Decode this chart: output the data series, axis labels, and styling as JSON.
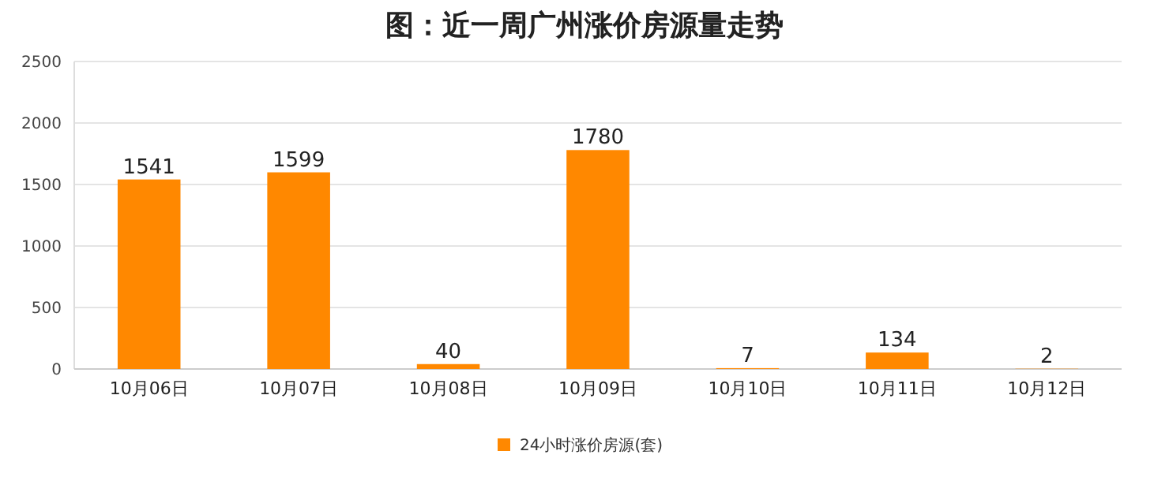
{
  "chart_data": {
    "type": "bar",
    "title": "图：近一周广州涨价房源量走势",
    "categories": [
      "10月06日",
      "10月07日",
      "10月08日",
      "10月09日",
      "10月10日",
      "10月11日",
      "10月12日"
    ],
    "series": [
      {
        "name": "24小时涨价房源(套)",
        "color": "#ff8800",
        "values": [
          1541,
          1599,
          40,
          1780,
          7,
          134,
          2
        ]
      }
    ],
    "ylim": [
      0,
      2500
    ],
    "yticks": [
      0,
      500,
      1000,
      1500,
      2000,
      2500
    ],
    "grid": "y",
    "legend": "bottom",
    "data_labels": true
  }
}
